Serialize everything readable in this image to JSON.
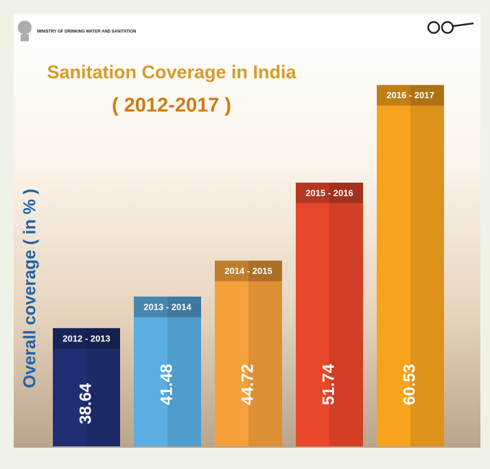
{
  "header": {
    "ministry": "MINISTRY OF DRINKING WATER AND SANITATION"
  },
  "chart_data": {
    "type": "bar",
    "title": "Sanitation Coverage in India",
    "subtitle": "( 2012-2017 )",
    "y_label": "Overall coverage ( in % )",
    "categories": [
      "2012 - 2013",
      "2013 - 2014",
      "2014 - 2015",
      "2015 - 2016",
      "2016 - 2017"
    ],
    "values": [
      38.64,
      41.48,
      44.72,
      51.74,
      60.53
    ],
    "colors": [
      "#1f2e72",
      "#5aaee2",
      "#f6a03c",
      "#e9472b",
      "#f7a31d"
    ],
    "ylim": [
      28,
      62
    ]
  }
}
